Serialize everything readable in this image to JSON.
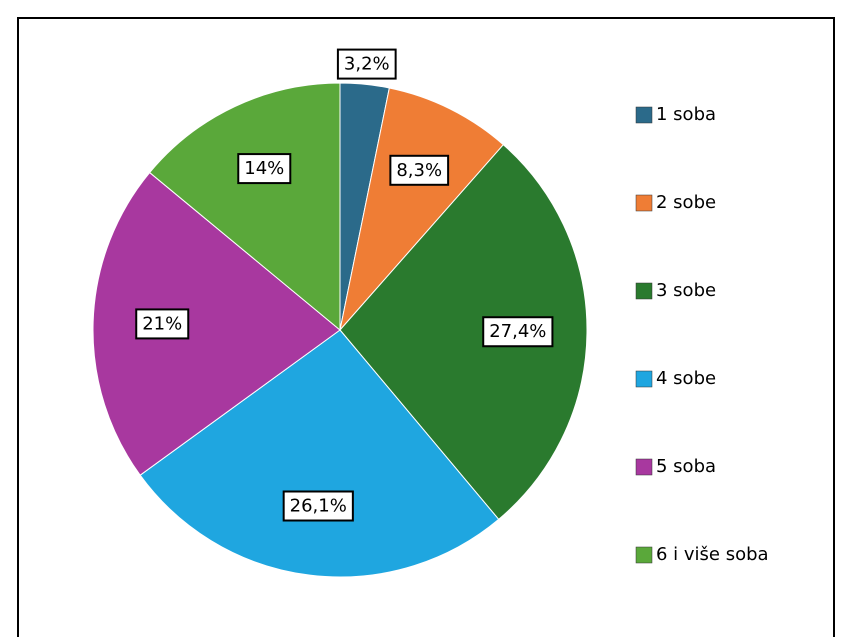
{
  "chart_data": {
    "type": "pie",
    "categories": [
      "1 soba",
      "2 sobe",
      "3 sobe",
      "4 sobe",
      "5 soba",
      "6 i više soba"
    ],
    "values": [
      3.2,
      8.3,
      27.4,
      26.1,
      21,
      14
    ],
    "value_labels": [
      "3,2%",
      "8,3%",
      "27,4%",
      "26,1%",
      "21%",
      "14%"
    ],
    "colors": [
      "#2b6a8a",
      "#ef7d35",
      "#2a7a2e",
      "#1fa6e0",
      "#a8389f",
      "#5aa83a"
    ],
    "legend": "right"
  }
}
